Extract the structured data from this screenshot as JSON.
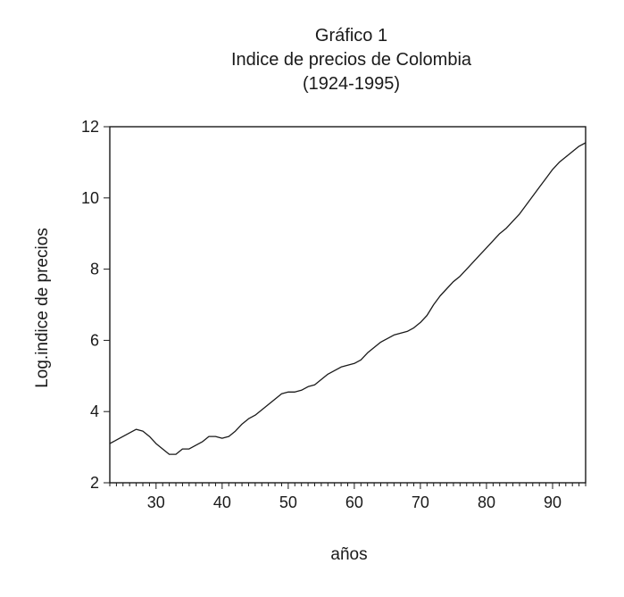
{
  "chart_data": {
    "type": "line",
    "title": "Gráfico 1",
    "subtitle": "Indice de precios de Colombia",
    "period": "(1924-1995)",
    "xlabel": "años",
    "ylabel": "Log.indice de precios",
    "xlim": [
      23,
      95
    ],
    "ylim": [
      2,
      12
    ],
    "xticks": [
      30,
      40,
      50,
      60,
      70,
      80,
      90
    ],
    "yticks": [
      2,
      4,
      6,
      8,
      10,
      12
    ],
    "grid": false,
    "series": [
      {
        "x": [
          23,
          24,
          25,
          26,
          27,
          28,
          29,
          30,
          31,
          32,
          33,
          34,
          35,
          36,
          37,
          38,
          39,
          40,
          41,
          42,
          43,
          44,
          45,
          46,
          47,
          48,
          49,
          50,
          51,
          52,
          53,
          54,
          55,
          56,
          57,
          58,
          59,
          60,
          61,
          62,
          63,
          64,
          65,
          66,
          67,
          68,
          69,
          70,
          71,
          72,
          73,
          74,
          75,
          76,
          77,
          78,
          79,
          80,
          81,
          82,
          83,
          84,
          85,
          86,
          87,
          88,
          89,
          90,
          91,
          92,
          93,
          94,
          95
        ],
        "y": [
          3.1,
          3.2,
          3.3,
          3.4,
          3.5,
          3.45,
          3.3,
          3.1,
          2.95,
          2.8,
          2.8,
          2.95,
          2.95,
          3.05,
          3.15,
          3.3,
          3.3,
          3.25,
          3.3,
          3.45,
          3.65,
          3.8,
          3.9,
          4.05,
          4.2,
          4.35,
          4.5,
          4.55,
          4.55,
          4.6,
          4.7,
          4.75,
          4.9,
          5.05,
          5.15,
          5.25,
          5.3,
          5.35,
          5.45,
          5.65,
          5.8,
          5.95,
          6.05,
          6.15,
          6.2,
          6.25,
          6.35,
          6.5,
          6.7,
          7.0,
          7.25,
          7.45,
          7.65,
          7.8,
          8.0,
          8.2,
          8.4,
          8.6,
          8.8,
          9.0,
          9.15,
          9.35,
          9.55,
          9.8,
          10.05,
          10.3,
          10.55,
          10.8,
          11.0,
          11.15,
          11.3,
          11.45,
          11.55
        ]
      }
    ]
  }
}
